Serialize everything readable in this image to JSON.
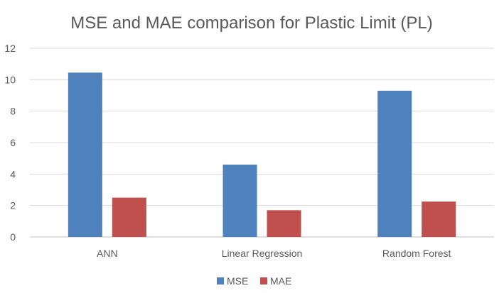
{
  "chart_data": {
    "type": "bar",
    "title": "MSE and MAE comparison for Plastic Limit (PL)",
    "categories": [
      "ANN",
      "Linear Regression",
      "Random Forest"
    ],
    "series": [
      {
        "name": "MSE",
        "values": [
          10.45,
          4.6,
          9.3
        ],
        "color": "#4f81bd"
      },
      {
        "name": "MAE",
        "values": [
          2.5,
          1.7,
          2.25
        ],
        "color": "#c0504d"
      }
    ],
    "ylim": [
      0,
      12
    ],
    "yticks": [
      "0",
      "2",
      "4",
      "6",
      "8",
      "10",
      "12"
    ],
    "grid": true,
    "legend_position": "bottom"
  }
}
